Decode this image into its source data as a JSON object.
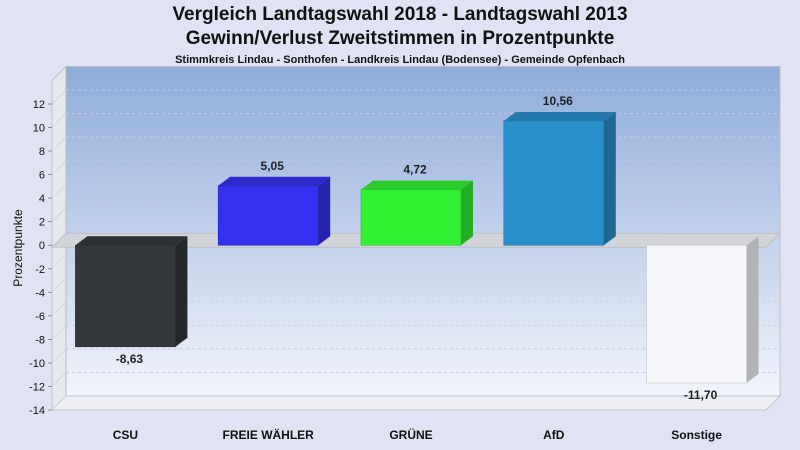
{
  "title": "Vergleich Landtagswahl 2018 - Landtagswahl 2013",
  "subtitle": "Gewinn/Verlust Zweitstimmen in Prozentpunkte",
  "caption": "Stimmkreis Lindau - Sonthofen - Landkreis Lindau (Bodensee) - Gemeinde Opfenbach",
  "chart_data": {
    "type": "bar",
    "ylabel": "Prozentpunkte",
    "ylim": [
      -14,
      14
    ],
    "yticks": [
      12,
      10,
      8,
      6,
      4,
      2,
      0,
      -2,
      -4,
      -6,
      -8,
      -10,
      -12,
      -14
    ],
    "grid": true,
    "categories": [
      "CSU",
      "FREIE WÄHLER",
      "GRÜNE",
      "AfD",
      "Sonstige"
    ],
    "values": [
      -8.63,
      5.05,
      4.72,
      10.56,
      -11.7
    ],
    "labels": [
      "-8,63",
      "5,05",
      "4,72",
      "10,56",
      "-11,70"
    ],
    "colors": [
      "#34383c",
      "#3232f0",
      "#32f032",
      "#2a90cc",
      "#f6f8fc"
    ]
  }
}
